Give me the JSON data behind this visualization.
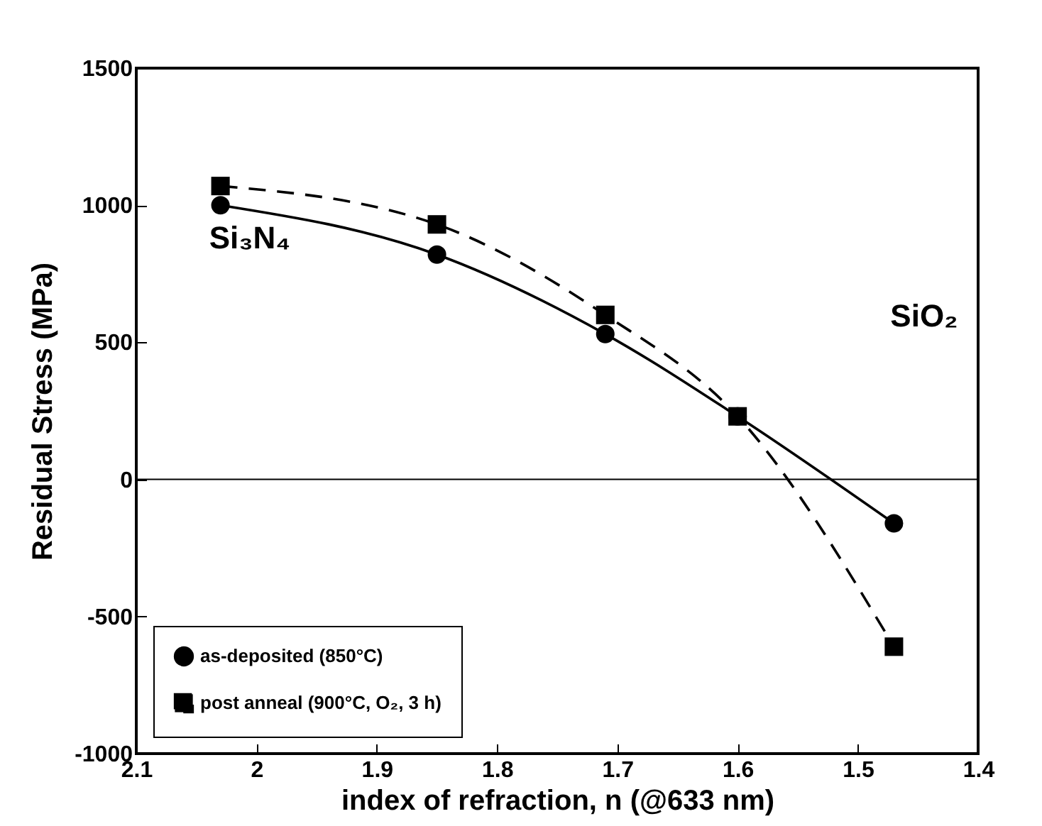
{
  "chart_data": {
    "type": "line",
    "xlabel": "index of refraction, n (@633 nm)",
    "ylabel": "Residual Stress (MPa)",
    "x": [
      2.03,
      1.85,
      1.71,
      1.6,
      1.47
    ],
    "series": [
      {
        "name": "as-deposited (850°C)",
        "color": "#000000",
        "values": [
          1000,
          820,
          530,
          230,
          -160
        ],
        "line_style": "solid",
        "marker": "circle"
      },
      {
        "name": "post anneal (900°C, O₂, 3 h)",
        "color": "#000000",
        "values": [
          1070,
          930,
          600,
          230,
          -610
        ],
        "line_style": "dashed",
        "marker": "square"
      }
    ],
    "xlim": [
      2.1,
      1.4
    ],
    "xticks": [
      2.1,
      2,
      1.9,
      1.8,
      1.7,
      1.6,
      1.5,
      1.4
    ],
    "ylim": [
      -1000,
      1500
    ],
    "yticks": [
      -1000,
      -500,
      0,
      500,
      1000,
      1500
    ],
    "ref_lines": [
      {
        "axis": "y",
        "value": 0,
        "color": "#000000"
      }
    ],
    "annotations": [
      "Si₃N₄",
      "SiO₂"
    ],
    "legend": "bottom left",
    "grid": false
  }
}
